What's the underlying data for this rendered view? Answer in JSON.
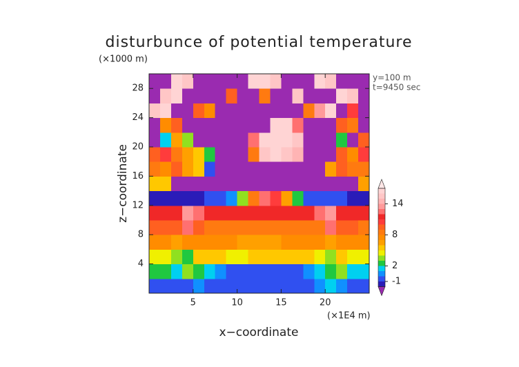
{
  "chart_data": {
    "type": "heatmap",
    "title": "disturbunce of potential temperature",
    "y_unit_label": "(×1000 m)",
    "x_unit_label": "(×1E4 m)",
    "annotations": [
      "y=100 m",
      "t=9450 sec"
    ],
    "x_label": "x−coordinate",
    "y_label": "z−coordinate",
    "xlim": [
      0,
      25
    ],
    "ylim": [
      0,
      30
    ],
    "xticks": [
      5,
      10,
      15,
      20
    ],
    "yticks": [
      4,
      8,
      12,
      16,
      20,
      24,
      28
    ],
    "x": [
      0.625,
      1.875,
      3.125,
      4.375,
      5.625,
      6.875,
      8.125,
      9.375,
      10.625,
      11.875,
      13.125,
      14.375,
      15.625,
      16.875,
      18.125,
      19.375,
      20.625,
      21.875,
      23.125,
      24.375
    ],
    "z": [
      1,
      3,
      5,
      7,
      9,
      11,
      13,
      15,
      17,
      19,
      21,
      23,
      25,
      27,
      29
    ],
    "values": [
      [
        -1,
        -1,
        -1,
        -1,
        0,
        -1,
        -1,
        -1,
        -1,
        -1,
        -1,
        -1,
        -1,
        -1,
        -1,
        0,
        1,
        0,
        -1,
        -1
      ],
      [
        2,
        2,
        1,
        3,
        2,
        1,
        0,
        -1,
        -1,
        -1,
        -1,
        -1,
        -1,
        -1,
        0,
        1,
        2,
        3,
        1,
        1
      ],
      [
        4,
        4,
        3,
        2,
        5,
        5,
        5,
        4,
        4,
        5,
        5,
        5,
        5,
        5,
        5,
        4,
        3,
        5,
        4,
        4
      ],
      [
        7,
        7,
        6,
        7,
        7,
        7,
        7,
        7,
        6,
        6,
        6,
        6,
        7,
        7,
        7,
        7,
        6,
        7,
        7,
        7
      ],
      [
        9,
        9,
        9,
        12,
        9,
        8,
        8,
        8,
        8,
        8,
        8,
        8,
        8,
        8,
        8,
        8,
        12,
        9,
        9,
        8
      ],
      [
        11,
        11,
        11,
        13,
        12,
        11,
        11,
        11,
        11,
        11,
        11,
        11,
        11,
        11,
        11,
        12,
        13,
        11,
        11,
        11
      ],
      [
        -2,
        -2,
        -2,
        -2,
        -2,
        -1,
        -1,
        0,
        3,
        8,
        12,
        10,
        6,
        2,
        -1,
        -1,
        -1,
        -1,
        -2,
        -2
      ],
      [
        5,
        5,
        -3,
        -3,
        -3,
        -3,
        -3,
        -3,
        -3,
        -3,
        -3,
        -3,
        -3,
        -3,
        -3,
        -3,
        -3,
        -3,
        -3,
        6
      ],
      [
        8,
        7,
        9,
        6,
        5,
        -1,
        -3,
        -3,
        -3,
        -3,
        -3,
        -3,
        -3,
        -3,
        -3,
        -3,
        6,
        9,
        8,
        8
      ],
      [
        9,
        10,
        8,
        6,
        5,
        2,
        -3,
        -3,
        -3,
        8,
        15,
        16,
        15,
        14,
        -3,
        -3,
        -3,
        9,
        7,
        10
      ],
      [
        -3,
        1,
        6,
        3,
        -3,
        -3,
        -3,
        -3,
        -3,
        12,
        16,
        16,
        16,
        15,
        -3,
        -3,
        -3,
        2,
        -3,
        9
      ],
      [
        -3,
        7,
        9,
        -3,
        -3,
        -3,
        -3,
        -3,
        -3,
        -3,
        -3,
        16,
        16,
        12,
        -3,
        -3,
        -3,
        9,
        8,
        -3
      ],
      [
        15,
        16,
        -3,
        -3,
        9,
        7,
        -3,
        -3,
        -3,
        -3,
        -3,
        -3,
        -3,
        -3,
        8,
        13,
        16,
        -3,
        10,
        -3
      ],
      [
        -3,
        15,
        16,
        -3,
        -3,
        -3,
        -3,
        9,
        -3,
        -3,
        8,
        -3,
        -3,
        15,
        -3,
        -3,
        -3,
        16,
        15,
        -3
      ],
      [
        -3,
        -3,
        16,
        15,
        -3,
        -3,
        -3,
        -3,
        -3,
        16,
        16,
        15,
        -3,
        -3,
        -3,
        16,
        15,
        -3,
        -3,
        -3
      ]
    ],
    "colorbar": {
      "levels": [
        -2,
        -1,
        0,
        1,
        2,
        3,
        4,
        5,
        6,
        7,
        8,
        9,
        10,
        11,
        12,
        13,
        14,
        15,
        16,
        17
      ],
      "colors": [
        "#9a2bb0",
        "#2a1cb8",
        "#3050f0",
        "#1090ff",
        "#00d0f0",
        "#20c840",
        "#90e020",
        "#f0f000",
        "#ffc800",
        "#ffa000",
        "#ff8c00",
        "#ff7a10",
        "#ff6020",
        "#ff3c3c",
        "#f02828",
        "#ff7070",
        "#ff9a9a",
        "#ffb4b4",
        "#ffc6c6",
        "#ffd4d4",
        "#ffe6e6"
      ],
      "ticks": [
        -1,
        2,
        8,
        14
      ]
    }
  }
}
